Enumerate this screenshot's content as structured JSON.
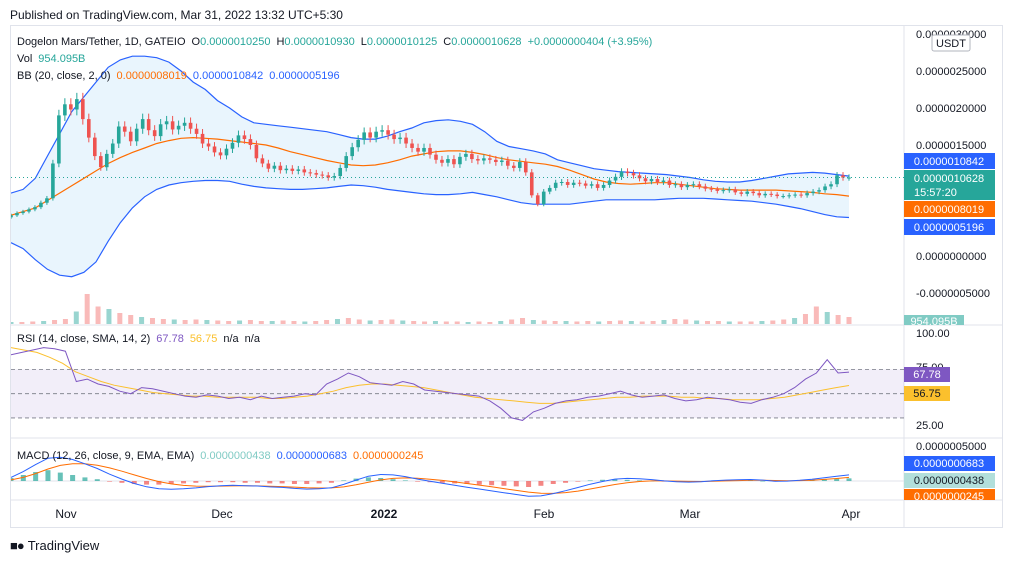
{
  "header": {
    "published": "Published on TradingView.com, Mar 31, 2022 13:32 UTC+5:30"
  },
  "symbol": {
    "name": "Dogelon Mars/Tether, 1D, GATEIO",
    "o_label": "O",
    "o": "0.0000010250",
    "h_label": "H",
    "h": "0.0000010930",
    "l_label": "L",
    "l": "0.0000010125",
    "c_label": "C",
    "c": "0.0000010628",
    "change": "+0.0000000404 (+3.95%)"
  },
  "vol": {
    "label": "Vol",
    "value": "954.095B"
  },
  "bb": {
    "label": "BB (20, close, 2, 0)",
    "basis": "0.0000008019",
    "upper": "0.0000010842",
    "lower": "0.0000005196"
  },
  "rsi": {
    "label": "RSI (14, close, SMA, 14, 2)",
    "value": "67.78",
    "sma": "56.75",
    "na1": "n/a",
    "na2": "n/a"
  },
  "macd": {
    "label": "MACD (12, 26, close, 9, EMA, EMA)",
    "hist": "0.0000000438",
    "macd": "0.0000000683",
    "signal": "0.0000000245"
  },
  "currency": "USDT",
  "price_axis": [
    "0.0000030000",
    "0.0000025000",
    "0.0000020000",
    "0.0000015000",
    "0.0000000000",
    "-0.0000005000"
  ],
  "price_tags": {
    "upper": "0.0000010842",
    "last": "0.0000010628",
    "countdown": "15:57:20",
    "basis": "0.0000008019",
    "lower": "0.0000005196",
    "vol": "954.095B"
  },
  "rsi_axis": [
    "100.00",
    "75.00",
    "25.00"
  ],
  "rsi_tags": {
    "rsi": "67.78",
    "sma": "56.75"
  },
  "macd_axis": [
    "0.0000005000"
  ],
  "macd_tags": {
    "macd": "0.0000000683",
    "hist": "0.0000000438",
    "signal": "0.0000000245"
  },
  "time_axis": [
    "Nov",
    "Dec",
    "2022",
    "Feb",
    "Mar",
    "Apr"
  ],
  "footer": {
    "brand": "TradingView"
  },
  "colors": {
    "up": "#26a69a",
    "down": "#ef5350",
    "bb_band": "#2962ff",
    "bb_basis": "#ff6d00",
    "bb_fill": "#e3f2fd",
    "rsi": "#7e57c2",
    "rsi_sma": "#fbc02d",
    "macd": "#2962ff",
    "signal": "#ff6d00"
  },
  "chart_data": {
    "type": "candlestick",
    "title": "Dogelon Mars/Tether, 1D, GATEIO",
    "x_range": [
      "2021-10-23",
      "2022-03-31"
    ],
    "closes": [
      5.5,
      5.8,
      6.0,
      6.3,
      6.6,
      7.2,
      7.8,
      12.5,
      19.0,
      20.5,
      19.8,
      21.2,
      18.5,
      16.0,
      13.5,
      12.0,
      13.8,
      15.2,
      17.5,
      16.8,
      15.5,
      17.2,
      18.5,
      17.0,
      16.2,
      17.8,
      18.2,
      17.1,
      17.6,
      18.0,
      17.2,
      16.5,
      15.2,
      14.8,
      14.0,
      13.6,
      14.5,
      15.3,
      16.3,
      15.8,
      15.0,
      13.2,
      12.5,
      11.8,
      12.2,
      11.6,
      11.8,
      11.5,
      11.7,
      11.3,
      11.2,
      11.0,
      10.9,
      10.6,
      10.8,
      11.9,
      13.5,
      14.7,
      15.7,
      16.7,
      16.0,
      16.8,
      17.0,
      16.4,
      15.8,
      16.0,
      15.2,
      14.6,
      14.1,
      14.6,
      13.7,
      13.0,
      12.6,
      13.1,
      12.4,
      13.4,
      13.8,
      13.1,
      12.9,
      13.2,
      13.0,
      12.7,
      12.9,
      12.2,
      11.9,
      12.7,
      11.3,
      8.2,
      7.0,
      8.7,
      9.2,
      9.9,
      10.0,
      9.6,
      9.9,
      9.8,
      9.5,
      9.7,
      9.2,
      9.6,
      10.2,
      10.7,
      11.4,
      11.2,
      10.9,
      10.5,
      10.1,
      10.4,
      10.0,
      10.2,
      9.6,
      9.7,
      9.3,
      9.6,
      9.7,
      9.4,
      9.1,
      9.0,
      8.8,
      8.9,
      9.0,
      8.6,
      8.4,
      8.7,
      8.5,
      8.2,
      8.4,
      8.3,
      8.1,
      8.1,
      8.2,
      8.3,
      8.2,
      8.5,
      8.7,
      8.9,
      9.4,
      9.7,
      10.9,
      10.6,
      10.6
    ],
    "bb_upper": [
      8.5,
      9.0,
      10.5,
      13.5,
      16.5,
      19.5,
      21.5,
      23.5,
      25.5,
      26.5,
      27.0,
      27.0,
      26.8,
      26.2,
      25.0,
      23.5,
      22.5,
      21.0,
      20.0,
      18.8,
      18.0,
      17.8,
      17.6,
      17.4,
      17.2,
      17.0,
      16.8,
      16.4,
      16.0,
      15.8,
      15.8,
      16.2,
      16.8,
      17.3,
      18.0,
      18.3,
      18.4,
      18.2,
      17.8,
      16.8,
      15.5,
      14.8,
      14.5,
      14.2,
      13.8,
      13.0,
      12.6,
      12.2,
      11.8,
      11.6,
      11.4,
      11.3,
      11.2,
      11.1,
      11.0,
      10.8,
      10.6,
      10.3,
      10.1,
      10.0,
      10.0,
      10.2,
      10.5,
      10.8,
      11.1,
      11.2,
      11.3,
      11.2,
      11.0,
      10.8
    ],
    "bb_basis": [
      5.5,
      6.0,
      6.5,
      7.5,
      8.5,
      9.5,
      10.5,
      11.5,
      12.5,
      13.3,
      14.0,
      14.6,
      15.2,
      15.6,
      15.9,
      16.0,
      15.9,
      15.8,
      15.6,
      15.4,
      15.2,
      15.0,
      14.6,
      14.1,
      13.7,
      13.3,
      12.9,
      12.6,
      12.3,
      12.2,
      12.3,
      12.6,
      13.0,
      13.5,
      13.8,
      14.1,
      14.2,
      14.2,
      14.0,
      13.7,
      13.3,
      13.0,
      12.8,
      12.6,
      12.4,
      12.1,
      11.6,
      11.0,
      10.4,
      10.0,
      9.8,
      9.7,
      9.8,
      9.9,
      9.9,
      9.7,
      9.5,
      9.3,
      9.1,
      9.0,
      8.9,
      8.9,
      8.9,
      8.9,
      8.8,
      8.7,
      8.6,
      8.4,
      8.3,
      8.1
    ],
    "bb_lower": [
      1.8,
      1.0,
      -0.5,
      -1.8,
      -2.6,
      -2.8,
      -2.2,
      -0.8,
      2.0,
      4.5,
      6.5,
      8.0,
      9.0,
      9.6,
      9.9,
      10.1,
      10.2,
      10.2,
      10.1,
      9.7,
      9.4,
      9.2,
      9.1,
      9.0,
      9.0,
      9.1,
      9.2,
      9.4,
      9.6,
      9.5,
      9.3,
      9.0,
      8.8,
      8.6,
      8.4,
      8.3,
      8.3,
      8.4,
      8.6,
      8.3,
      8.0,
      7.6,
      7.2,
      7.0,
      7.0,
      7.0,
      7.0,
      7.2,
      7.4,
      7.6,
      7.6,
      7.6,
      7.6,
      7.6,
      7.7,
      7.8,
      7.8,
      7.8,
      7.7,
      7.6,
      7.5,
      7.4,
      7.2,
      7.0,
      6.7,
      6.4,
      6.0,
      5.6,
      5.3,
      5.2
    ],
    "rsi": [
      82,
      84,
      86,
      88,
      87,
      85,
      60,
      62,
      58,
      56,
      52,
      50,
      55,
      54,
      52,
      50,
      48,
      47,
      49,
      48,
      46,
      47,
      45,
      48,
      46,
      47,
      48,
      50,
      49,
      58,
      62,
      67,
      64,
      59,
      58,
      57,
      60,
      58,
      53,
      52,
      51,
      50,
      49,
      48,
      44,
      38,
      30,
      28,
      35,
      38,
      42,
      44,
      45,
      47,
      48,
      50,
      52,
      49,
      47,
      48,
      49,
      46,
      44,
      45,
      47,
      46,
      45,
      43,
      42,
      45,
      47,
      50,
      55,
      62,
      67,
      78,
      67,
      67.8
    ],
    "rsi_sma": [
      88,
      86,
      84,
      80,
      75,
      68,
      64,
      60,
      57,
      55,
      53,
      51,
      50,
      49,
      48,
      48,
      47,
      47,
      47,
      47,
      46,
      46,
      47,
      48,
      50,
      52,
      55,
      57,
      58,
      58,
      57,
      56,
      55,
      53,
      51,
      49,
      47,
      46,
      45,
      44,
      43,
      42,
      42,
      43,
      44,
      45,
      46,
      47,
      47,
      48,
      48,
      48,
      47,
      47,
      46,
      46,
      45,
      45,
      45,
      46,
      47,
      49,
      51,
      53,
      55,
      56.75
    ],
    "macd_hist": [
      0.5,
      1.0,
      1.5,
      1.8,
      1.4,
      1.0,
      0.6,
      0.3,
      -0.1,
      -0.3,
      -0.5,
      -0.6,
      -0.6,
      -0.5,
      -0.4,
      -0.3,
      -0.2,
      -0.2,
      -0.2,
      -0.3,
      -0.3,
      -0.4,
      -0.4,
      -0.5,
      -0.5,
      -0.4,
      -0.3,
      0.1,
      0.4,
      0.6,
      0.5,
      0.3,
      0.1,
      -0.1,
      -0.2,
      -0.3,
      -0.4,
      -0.5,
      -0.6,
      -0.7,
      -0.8,
      -0.9,
      -1.0,
      -0.8,
      -0.5,
      -0.3,
      -0.1,
      0.1,
      0.2,
      0.3,
      0.2,
      0.1,
      0.0,
      -0.1,
      -0.1,
      -0.1,
      0.0,
      0.1,
      0.1,
      0.1,
      0.1,
      0.0,
      -0.1,
      0.0,
      0.1,
      0.2,
      0.3,
      0.4,
      0.44
    ],
    "volume": [
      4,
      4,
      5,
      6,
      8,
      10,
      25,
      60,
      35,
      30,
      22,
      18,
      14,
      12,
      10,
      9,
      8,
      9,
      8,
      7,
      6,
      7,
      8,
      6,
      6,
      7,
      6,
      5,
      6,
      8,
      10,
      12,
      9,
      7,
      8,
      9,
      7,
      6,
      5,
      6,
      5,
      5,
      4,
      5,
      4,
      6,
      9,
      12,
      8,
      7,
      6,
      6,
      5,
      6,
      5,
      6,
      7,
      6,
      5,
      6,
      8,
      10,
      9,
      7,
      6,
      6,
      5,
      5,
      5,
      6,
      7,
      9,
      12,
      20,
      35,
      24,
      18,
      14
    ]
  }
}
